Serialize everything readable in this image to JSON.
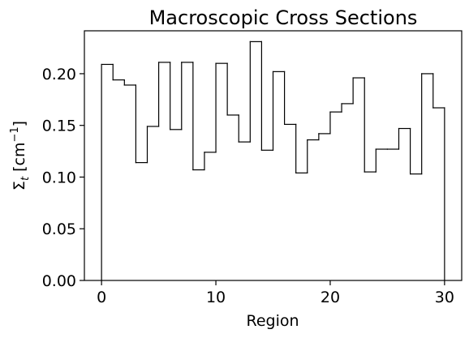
{
  "chart_data": {
    "type": "step",
    "title": "Macroscopic Cross Sections",
    "xlabel": "Region",
    "ylabel_symbol": "Σ",
    "ylabel_subscript": "t",
    "ylabel_unit": " [cm",
    "ylabel_exponent": "−1",
    "ylabel_close": "]",
    "xlim": [
      -1.5,
      31.5
    ],
    "ylim": [
      0,
      0.2415
    ],
    "xticks": [
      0,
      10,
      20,
      30
    ],
    "xtick_labels": [
      "0",
      "10",
      "20",
      "30"
    ],
    "yticks": [
      0.0,
      0.05,
      0.1,
      0.15,
      0.2
    ],
    "ytick_labels": [
      "0.00",
      "0.05",
      "0.10",
      "0.15",
      "0.20"
    ],
    "bin_edges": [
      0,
      1,
      2,
      3,
      4,
      5,
      6,
      7,
      8,
      9,
      10,
      11,
      12,
      13,
      14,
      15,
      16,
      17,
      18,
      19,
      20,
      21,
      22,
      23,
      24,
      25,
      26,
      27,
      28,
      29,
      30
    ],
    "values": [
      0.209,
      0.194,
      0.189,
      0.114,
      0.149,
      0.211,
      0.146,
      0.211,
      0.107,
      0.124,
      0.21,
      0.16,
      0.134,
      0.231,
      0.126,
      0.202,
      0.151,
      0.104,
      0.136,
      0.142,
      0.163,
      0.171,
      0.196,
      0.105,
      0.127,
      0.127,
      0.147,
      0.103,
      0.2,
      0.167
    ],
    "line_color": "#000000",
    "grid": false,
    "legend": false
  }
}
